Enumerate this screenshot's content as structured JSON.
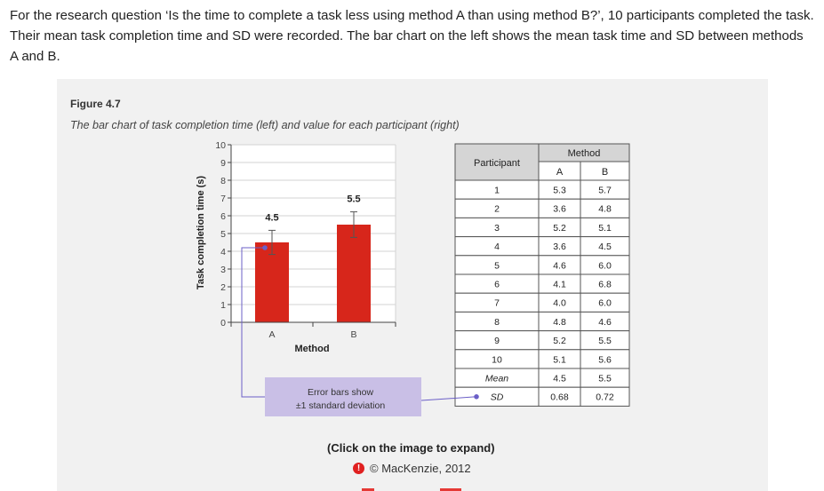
{
  "intro_text": "For the research question ‘Is the time to complete a task less using method A than using method B?’, 10 participants completed the task. Their mean task completion time and SD were recorded. The bar chart on the left shows the mean task time and SD between methods A and B.",
  "figure": {
    "title": "Figure 4.7",
    "caption": "The bar chart of task completion time (left) and value for each participant (right)"
  },
  "annotation": {
    "line1": "Error bars show",
    "line2": "±1 standard deviation"
  },
  "click_note": "(Click on the image to expand)",
  "copyright": "© MacKenzie, 2012",
  "colors": {
    "bar": "#d7261b",
    "annotation_box": "#c9bfe6",
    "connector": "#6b5fc7"
  },
  "chart_data": {
    "type": "bar",
    "categories": [
      "A",
      "B"
    ],
    "values": [
      4.5,
      5.5
    ],
    "errors": [
      0.68,
      0.72
    ],
    "value_labels": [
      "4.5",
      "5.5"
    ],
    "xlabel": "Method",
    "ylabel": "Task completion time (s)",
    "ylim": [
      0,
      10
    ],
    "yticks": [
      "0",
      "1",
      "2",
      "3",
      "4",
      "5",
      "6",
      "7",
      "8",
      "9",
      "10"
    ],
    "grid": true,
    "table": {
      "header_participant": "Participant",
      "header_method": "Method",
      "columns": [
        "A",
        "B"
      ],
      "rows": [
        [
          "1",
          "5.3",
          "5.7"
        ],
        [
          "2",
          "3.6",
          "4.8"
        ],
        [
          "3",
          "5.2",
          "5.1"
        ],
        [
          "4",
          "3.6",
          "4.5"
        ],
        [
          "5",
          "4.6",
          "6.0"
        ],
        [
          "6",
          "4.1",
          "6.8"
        ],
        [
          "7",
          "4.0",
          "6.0"
        ],
        [
          "8",
          "4.8",
          "4.6"
        ],
        [
          "9",
          "5.2",
          "5.5"
        ],
        [
          "10",
          "5.1",
          "5.6"
        ]
      ],
      "mean_label": "Mean",
      "mean": [
        "4.5",
        "5.5"
      ],
      "sd_label": "SD",
      "sd": [
        "0.68",
        "0.72"
      ]
    }
  }
}
